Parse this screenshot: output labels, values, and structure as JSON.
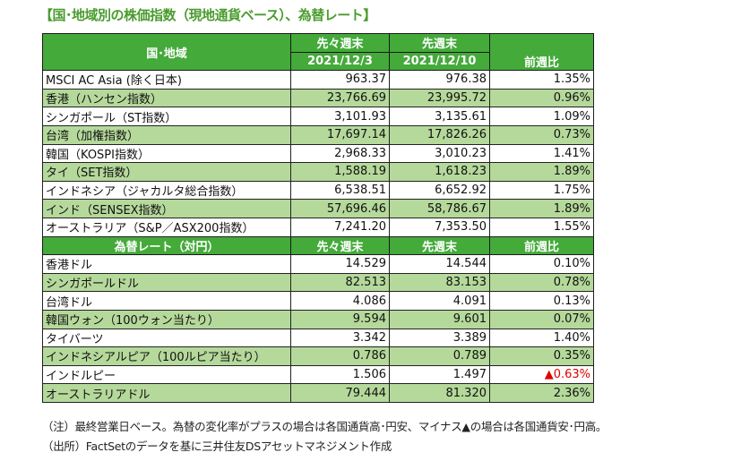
{
  "title": "【国･地域別の株価指数（現地通貨ベース）、為替レート】",
  "stock_header": {
    "region": "国･地域",
    "prev2_label": "先々週末",
    "prev2_date": "2021/12/3",
    "prev1_label": "先週末",
    "prev1_date": "2021/12/10",
    "change": "前週比"
  },
  "stock_rows": [
    {
      "name": "MSCI AC Asia (除く日本)",
      "a": "963.37",
      "b": "976.38",
      "c": "1.35%"
    },
    {
      "name": "香港（ハンセン指数）",
      "a": "23,766.69",
      "b": "23,995.72",
      "c": "0.96%"
    },
    {
      "name": "シンガポール（ST指数）",
      "a": "3,101.93",
      "b": "3,135.61",
      "c": "1.09%"
    },
    {
      "name": "台湾（加権指数）",
      "a": "17,697.14",
      "b": "17,826.26",
      "c": "0.73%"
    },
    {
      "name": "韓国（KOSPI指数）",
      "a": "2,968.33",
      "b": "3,010.23",
      "c": "1.41%"
    },
    {
      "name": "タイ（SET指数）",
      "a": "1,588.19",
      "b": "1,618.23",
      "c": "1.89%"
    },
    {
      "name": "インドネシア（ジャカルタ総合指数）",
      "a": "6,538.51",
      "b": "6,652.92",
      "c": "1.75%"
    },
    {
      "name": "インド（SENSEX指数）",
      "a": "57,696.46",
      "b": "58,786.67",
      "c": "1.89%"
    },
    {
      "name": "オーストラリア（S&P／ASX200指数）",
      "a": "7,241.20",
      "b": "7,353.50",
      "c": "1.55%"
    }
  ],
  "fx_header": {
    "label": "為替レート（対円）",
    "prev2": "先々週末",
    "prev1": "先週末",
    "change": "前週比"
  },
  "fx_rows": [
    {
      "name": "香港ドル",
      "a": "14.529",
      "b": "14.544",
      "c": "0.10%"
    },
    {
      "name": "シンガポールドル",
      "a": "82.513",
      "b": "83.153",
      "c": "0.78%"
    },
    {
      "name": "台湾ドル",
      "a": "4.086",
      "b": "4.091",
      "c": "0.13%"
    },
    {
      "name": "韓国ウォン（100ウォン当たり）",
      "a": "9.594",
      "b": "9.601",
      "c": "0.07%"
    },
    {
      "name": "タイバーツ",
      "a": "3.342",
      "b": "3.389",
      "c": "1.40%"
    },
    {
      "name": "インドネシアルピア（100ルピア当たり）",
      "a": "0.786",
      "b": "0.789",
      "c": "0.35%"
    },
    {
      "name": "インドルピー",
      "a": "1.506",
      "b": "1.497",
      "c": "▲0.63%",
      "negative": true
    },
    {
      "name": "オーストラリアドル",
      "a": "79.444",
      "b": "81.320",
      "c": "2.36%"
    }
  ],
  "notes": [
    "（注）最終営業日ベース。為替の変化率がプラスの場合は各国通貨高･円安、マイナス▲の場合は各国通貨安･円高。",
    "（出所）FactSetのデータを基に三井住友DSアセットマネジメント作成"
  ],
  "colors": {
    "header": "#44aa3a",
    "alt_row": "#b5d99b",
    "title": "#4a9c2e",
    "negative": "#e00000"
  }
}
